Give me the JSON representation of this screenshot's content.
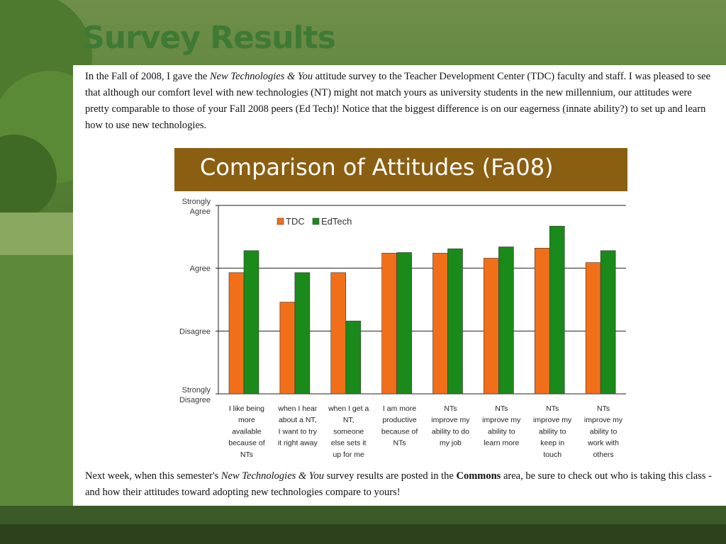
{
  "slide": {
    "title": "Survey Results",
    "intro": {
      "p1": "In the Fall of 2008, I gave the ",
      "italic": "New Technologies & You",
      "p2": " attitude survey to the Teacher Development Center (TDC) faculty and staff. I was pleased to see that although our comfort level with new technologies (NT) might not match yours as university students in the new millennium, our attitudes were pretty comparable to those of your Fall 2008 peers (Ed Tech)! Notice that the biggest difference is on our eagerness (innate ability?) to set up and learn how to use new technologies."
    },
    "outro": {
      "p1": "Next week, when this semester's ",
      "italic": "New Technologies & You",
      "p2": " survey results are posted in the ",
      "bold": "Commons",
      "p3": " area, be sure to check out who is taking this class - and how their attitudes toward adopting new technologies compare to yours!"
    }
  },
  "chart_data": {
    "type": "bar",
    "title": "Comparison of Attitudes (Fa08)",
    "y_levels": [
      {
        "value": 1,
        "label": [
          "Strongly",
          "Disagree"
        ]
      },
      {
        "value": 2,
        "label": [
          "Disagree"
        ]
      },
      {
        "value": 3,
        "label": [
          "Agree"
        ]
      },
      {
        "value": 4,
        "label": [
          "Strongly",
          "Agree"
        ]
      }
    ],
    "ylim": [
      1,
      4
    ],
    "grid": true,
    "legend_position": "top-left",
    "categories": [
      [
        "I like being",
        "more",
        "available",
        "because of",
        "NTs"
      ],
      [
        "when I hear",
        "about a NT,",
        "I want to try",
        "it right away"
      ],
      [
        "when I get a",
        "NT,",
        "someone",
        "else sets it",
        "up for me"
      ],
      [
        "I am more",
        "productive",
        "because of",
        "NTs"
      ],
      [
        "NTs",
        "improve my",
        "ability to do",
        "my job"
      ],
      [
        "NTs",
        "improve my",
        "ability to",
        "learn more"
      ],
      [
        "NTs",
        "improve my",
        "ability to",
        "keep in",
        "touch"
      ],
      [
        "NTs",
        "improve my",
        "ability to",
        "work with",
        "others"
      ]
    ],
    "series": [
      {
        "name": "TDC",
        "color": "#f26f1a",
        "values": [
          2.93,
          2.46,
          2.93,
          3.24,
          3.24,
          3.16,
          3.32,
          3.09
        ]
      },
      {
        "name": "EdTech",
        "color": "#1a8a1a",
        "values": [
          3.28,
          2.93,
          2.16,
          3.25,
          3.31,
          3.34,
          3.67,
          3.28
        ]
      }
    ]
  }
}
